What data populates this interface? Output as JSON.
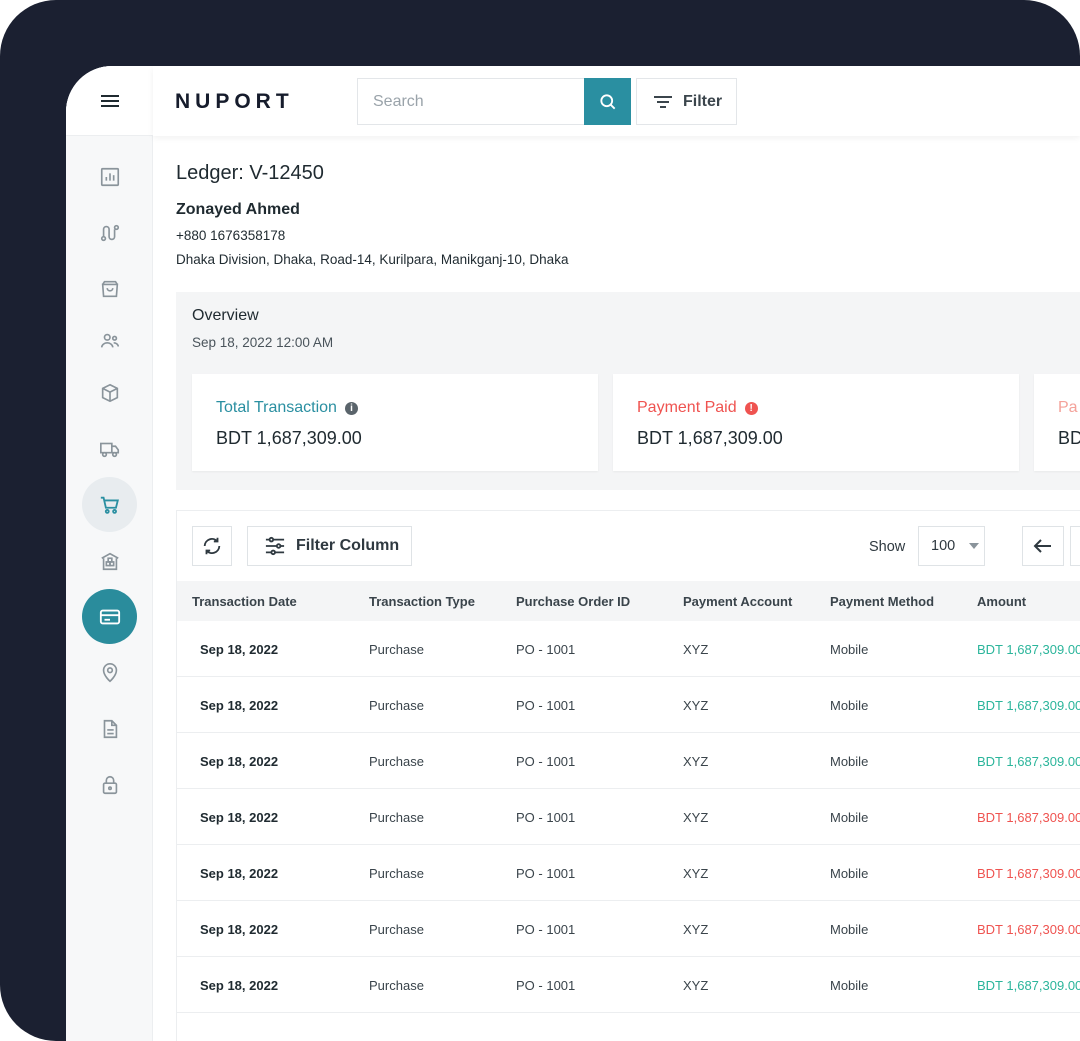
{
  "brand": {
    "logo": "NUPORT",
    "accent": "#2a8fa1"
  },
  "topbar": {
    "search_placeholder": "Search",
    "filter_label": "Filter"
  },
  "sidebar": {
    "items": [
      {
        "icon": "bar-chart-icon"
      },
      {
        "icon": "route-icon"
      },
      {
        "icon": "shopping-bag-icon"
      },
      {
        "icon": "users-icon"
      },
      {
        "icon": "package-box-icon"
      },
      {
        "icon": "truck-icon"
      },
      {
        "icon": "cart-icon",
        "state": "hover"
      },
      {
        "icon": "warehouse-icon"
      },
      {
        "icon": "credit-card-icon",
        "state": "active"
      },
      {
        "icon": "map-pin-icon"
      },
      {
        "icon": "document-icon"
      },
      {
        "icon": "lock-icon"
      }
    ]
  },
  "ledger": {
    "title": "Ledger: V-12450",
    "name": "Zonayed Ahmed",
    "phone": "+880 1676358178",
    "address": "Dhaka Division, Dhaka, Road-14, Kurilpara, Manikganj-10, Dhaka"
  },
  "overview": {
    "title": "Overview",
    "date": "Sep 18, 2022 12:00 AM",
    "cards": [
      {
        "label": "Total Transaction",
        "value": "BDT 1,687,309.00",
        "color": "#2a8fa1"
      },
      {
        "label": "Payment Paid",
        "value": "BDT 1,687,309.00",
        "color": "#ef5350"
      },
      {
        "label": "Pa",
        "value": "BD",
        "color": "#f4a29a"
      }
    ]
  },
  "table": {
    "toolbar": {
      "filter_column": "Filter Column",
      "show_label": "Show",
      "show_value": "100"
    },
    "columns": [
      "Transaction Date",
      "Transaction Type",
      "Purchase Order ID",
      "Payment Account",
      "Payment Method",
      "Amount"
    ],
    "rows": [
      {
        "date": "Sep 18, 2022",
        "type": "Purchase",
        "po": "PO - 1001",
        "account": "XYZ",
        "method": "Mobile",
        "amount": "BDT 1,687,309.00",
        "status": "green"
      },
      {
        "date": "Sep 18, 2022",
        "type": "Purchase",
        "po": "PO - 1001",
        "account": "XYZ",
        "method": "Mobile",
        "amount": "BDT 1,687,309.00",
        "status": "green"
      },
      {
        "date": "Sep 18, 2022",
        "type": "Purchase",
        "po": "PO - 1001",
        "account": "XYZ",
        "method": "Mobile",
        "amount": "BDT 1,687,309.00",
        "status": "green"
      },
      {
        "date": "Sep 18, 2022",
        "type": "Purchase",
        "po": "PO - 1001",
        "account": "XYZ",
        "method": "Mobile",
        "amount": "BDT 1,687,309.00",
        "status": "red"
      },
      {
        "date": "Sep 18, 2022",
        "type": "Purchase",
        "po": "PO - 1001",
        "account": "XYZ",
        "method": "Mobile",
        "amount": "BDT 1,687,309.00",
        "status": "red"
      },
      {
        "date": "Sep 18, 2022",
        "type": "Purchase",
        "po": "PO - 1001",
        "account": "XYZ",
        "method": "Mobile",
        "amount": "BDT 1,687,309.00",
        "status": "red"
      },
      {
        "date": "Sep 18, 2022",
        "type": "Purchase",
        "po": "PO - 1001",
        "account": "XYZ",
        "method": "Mobile",
        "amount": "BDT 1,687,309.00",
        "status": "green"
      }
    ]
  }
}
